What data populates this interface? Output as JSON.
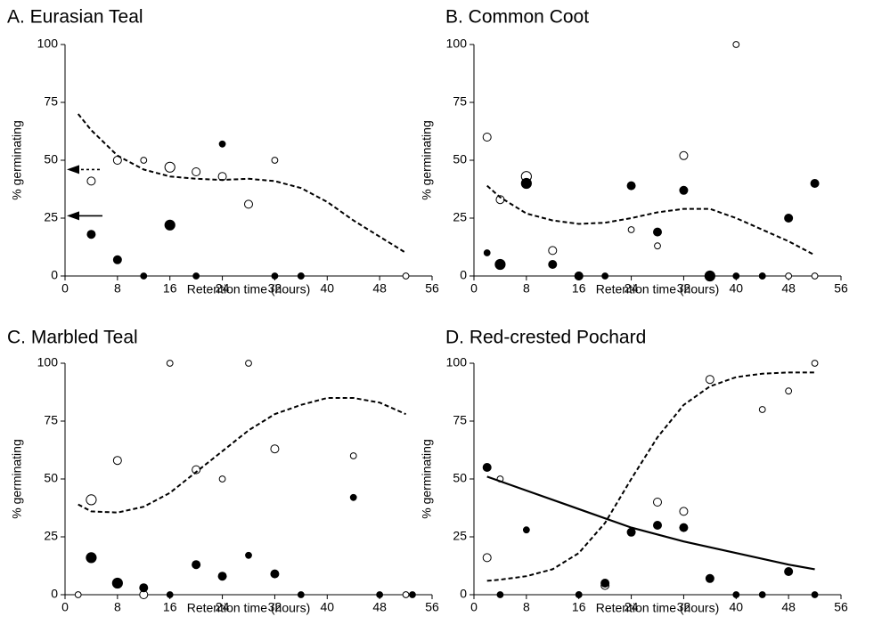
{
  "chart_data": [
    {
      "type": "scatter",
      "title": "A. Eurasian Teal",
      "xlabel": "Retention time (hours)",
      "ylabel": "% germinating",
      "xlim": [
        0,
        56
      ],
      "ylim": [
        0,
        100
      ],
      "xticks": [
        0,
        8,
        16,
        24,
        32,
        40,
        48,
        56
      ],
      "yticks": [
        0,
        25,
        50,
        75,
        100
      ],
      "arrows": [
        {
          "y": 46,
          "style": "dashed"
        },
        {
          "y": 26,
          "style": "solid"
        }
      ],
      "series": [
        {
          "mode": "markers",
          "color": "#000000",
          "filled": false,
          "x": [
            4,
            8,
            12,
            16,
            20,
            24,
            28,
            32,
            36,
            52
          ],
          "values": [
            41,
            50,
            50,
            47,
            45,
            43,
            31,
            50,
            0,
            0
          ],
          "sizes": [
            1.5,
            1.5,
            1,
            2,
            1.5,
            1.5,
            1.5,
            1,
            1,
            1
          ]
        },
        {
          "mode": "markers",
          "color": "#000000",
          "filled": true,
          "x": [
            4,
            8,
            12,
            16,
            20,
            24,
            32,
            36
          ],
          "values": [
            18,
            7,
            0,
            22,
            0,
            57,
            0,
            0
          ],
          "sizes": [
            1.5,
            1.5,
            1,
            2,
            1,
            1,
            1,
            1
          ]
        },
        {
          "mode": "line",
          "style": "dashed",
          "color": "#000000",
          "x": [
            2,
            4,
            8,
            12,
            16,
            20,
            24,
            28,
            32,
            36,
            40,
            44,
            48,
            52
          ],
          "values": [
            70,
            63,
            52,
            46,
            43,
            42,
            41.5,
            42,
            41,
            38,
            32,
            24,
            17,
            10
          ]
        }
      ]
    },
    {
      "type": "scatter",
      "title": "B. Common Coot",
      "xlabel": "Retention time (hours)",
      "ylabel": "% germinating",
      "xlim": [
        0,
        56
      ],
      "ylim": [
        0,
        100
      ],
      "xticks": [
        0,
        8,
        16,
        24,
        32,
        40,
        48,
        56
      ],
      "yticks": [
        0,
        25,
        50,
        75,
        100
      ],
      "series": [
        {
          "mode": "markers",
          "color": "#000000",
          "filled": false,
          "x": [
            2,
            4,
            8,
            12,
            16,
            24,
            28,
            32,
            36,
            40,
            44,
            48,
            52
          ],
          "values": [
            60,
            33,
            43,
            11,
            0,
            20,
            13,
            52,
            0,
            100,
            0,
            0,
            0
          ],
          "sizes": [
            1.5,
            1.5,
            2,
            1.5,
            1.5,
            1,
            1,
            1.5,
            1,
            1,
            1,
            1,
            1
          ]
        },
        {
          "mode": "markers",
          "color": "#000000",
          "filled": true,
          "x": [
            2,
            4,
            8,
            12,
            16,
            20,
            24,
            28,
            32,
            36,
            40,
            44,
            48,
            52
          ],
          "values": [
            10,
            5,
            40,
            5,
            0,
            0,
            39,
            19,
            37,
            0,
            0,
            0,
            25,
            40
          ],
          "sizes": [
            1,
            2,
            2,
            1.5,
            1.5,
            1,
            1.5,
            1.5,
            1.5,
            2,
            1,
            1,
            1.5,
            1.5
          ]
        },
        {
          "mode": "line",
          "style": "dashed",
          "color": "#000000",
          "x": [
            2,
            4,
            8,
            12,
            16,
            20,
            24,
            28,
            32,
            36,
            40,
            44,
            48,
            52
          ],
          "values": [
            39,
            34,
            27,
            24,
            22.5,
            23,
            25,
            27.5,
            29,
            29,
            25,
            20,
            15,
            9
          ]
        }
      ]
    },
    {
      "type": "scatter",
      "title": "C. Marbled Teal",
      "xlabel": "Retention time (hours)",
      "ylabel": "% germinating",
      "xlim": [
        0,
        56
      ],
      "ylim": [
        0,
        100
      ],
      "xticks": [
        0,
        8,
        16,
        24,
        32,
        40,
        48,
        56
      ],
      "yticks": [
        0,
        25,
        50,
        75,
        100
      ],
      "series": [
        {
          "mode": "markers",
          "color": "#000000",
          "filled": false,
          "x": [
            2,
            4,
            8,
            12,
            16,
            20,
            24,
            28,
            32,
            44,
            52
          ],
          "values": [
            0,
            41,
            58,
            0,
            100,
            54,
            50,
            100,
            63,
            60,
            0
          ],
          "sizes": [
            1,
            2,
            1.5,
            1.5,
            1,
            1.5,
            1,
            1,
            1.5,
            1,
            1
          ]
        },
        {
          "mode": "markers",
          "color": "#000000",
          "filled": true,
          "x": [
            4,
            8,
            12,
            16,
            20,
            24,
            28,
            32,
            36,
            44,
            48,
            53
          ],
          "values": [
            16,
            5,
            3,
            0,
            13,
            8,
            17,
            9,
            0,
            42,
            0,
            0
          ],
          "sizes": [
            2,
            2,
            1.5,
            1,
            1.5,
            1.5,
            1,
            1.5,
            1,
            1,
            1,
            1
          ]
        },
        {
          "mode": "line",
          "style": "dashed",
          "color": "#000000",
          "x": [
            2,
            4,
            8,
            12,
            16,
            20,
            24,
            28,
            32,
            36,
            40,
            44,
            48,
            52
          ],
          "values": [
            39,
            36,
            35.5,
            38,
            44,
            53,
            62,
            71,
            78,
            82,
            85,
            85,
            83,
            78
          ]
        }
      ]
    },
    {
      "type": "scatter",
      "title": "D. Red-crested Pochard",
      "xlabel": "Retention time (hours)",
      "ylabel": "% germinating",
      "xlim": [
        0,
        56
      ],
      "ylim": [
        0,
        100
      ],
      "xticks": [
        0,
        8,
        16,
        24,
        32,
        40,
        48,
        56
      ],
      "yticks": [
        0,
        25,
        50,
        75,
        100
      ],
      "series": [
        {
          "mode": "markers",
          "color": "#000000",
          "filled": false,
          "x": [
            2,
            4,
            16,
            20,
            28,
            32,
            36,
            44,
            48,
            52
          ],
          "values": [
            16,
            50,
            0,
            4,
            40,
            36,
            93,
            80,
            88,
            100
          ],
          "sizes": [
            1.5,
            1,
            1,
            1.5,
            1.5,
            1.5,
            1.5,
            1,
            1,
            1
          ]
        },
        {
          "mode": "markers",
          "color": "#000000",
          "filled": true,
          "x": [
            2,
            4,
            8,
            16,
            20,
            24,
            28,
            32,
            36,
            40,
            44,
            48,
            52
          ],
          "values": [
            55,
            0,
            28,
            0,
            5,
            27,
            30,
            29,
            7,
            0,
            0,
            10,
            0
          ],
          "sizes": [
            1.5,
            1,
            1,
            1,
            1.5,
            1.5,
            1.5,
            1.5,
            1.5,
            1,
            1,
            1.5,
            1
          ]
        },
        {
          "mode": "line",
          "style": "dashed",
          "color": "#000000",
          "x": [
            2,
            4,
            8,
            12,
            16,
            20,
            24,
            28,
            32,
            36,
            40,
            44,
            48,
            52
          ],
          "values": [
            6,
            6.5,
            8,
            11,
            18,
            31,
            50,
            68,
            82,
            90,
            94,
            95.5,
            96,
            96
          ]
        },
        {
          "mode": "line",
          "style": "solid",
          "color": "#000000",
          "x": [
            2,
            8,
            16,
            24,
            32,
            40,
            48,
            52
          ],
          "values": [
            51,
            45,
            37,
            29,
            23,
            18,
            13,
            11
          ]
        }
      ]
    }
  ]
}
